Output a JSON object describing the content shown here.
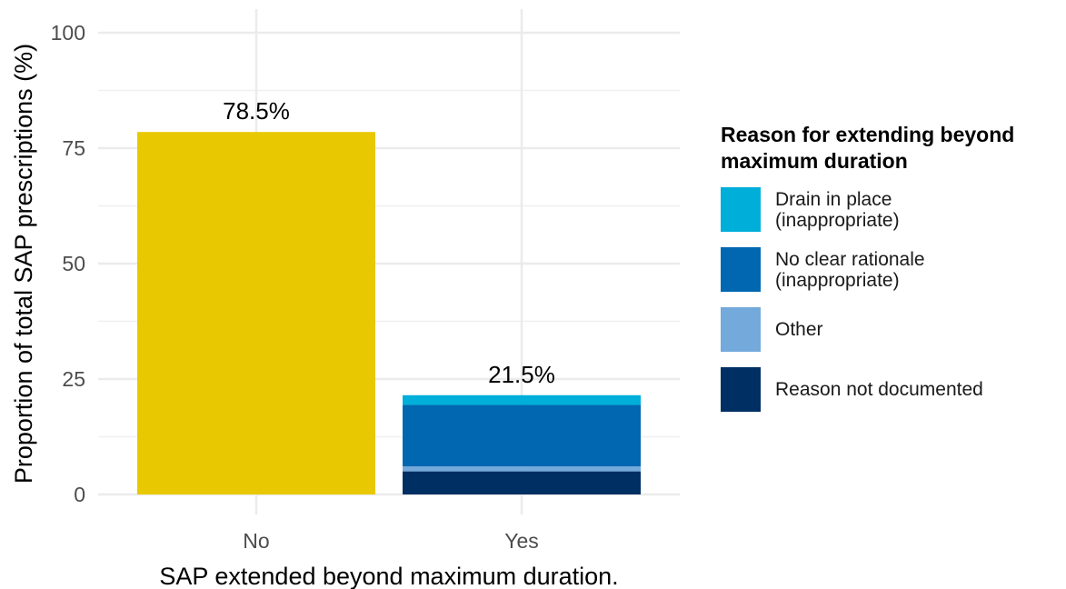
{
  "chart_data": {
    "type": "bar",
    "stacked": true,
    "categories": [
      "No",
      "Yes"
    ],
    "xlabel": "SAP extended beyond maximum duration.",
    "ylabel": "Proportion of total SAP prescriptions (%)",
    "ylim": [
      0,
      100
    ],
    "yticks": [
      0,
      25,
      50,
      75,
      100
    ],
    "grid": true,
    "legend_position": "right",
    "bars": [
      {
        "category": "No",
        "total_label": "78.5%",
        "segments": [
          {
            "series": "",
            "value": 78.5,
            "color": "#E8C800"
          }
        ]
      },
      {
        "category": "Yes",
        "total_label": "21.5%",
        "segments": [
          {
            "series": "Reason not documented",
            "value": 5.0,
            "color": "#002F63"
          },
          {
            "series": "Other",
            "value": 1.1,
            "color": "#74A9DB"
          },
          {
            "series": "No clear rationale\n(inappropriate)",
            "value": 13.3,
            "color": "#0067B0"
          },
          {
            "series": "Drain in place\n(inappropriate)",
            "value": 2.1,
            "color": "#00AEDA"
          }
        ]
      }
    ]
  },
  "legend": {
    "title": "Reason for extending beyond\nmaximum duration",
    "items": [
      {
        "label": "Drain in place\n(inappropriate)",
        "color": "#00AEDA"
      },
      {
        "label": "No clear rationale\n(inappropriate)",
        "color": "#0067B0"
      },
      {
        "label": "Other",
        "color": "#74A9DB"
      },
      {
        "label": "Reason not documented",
        "color": "#002F63"
      }
    ]
  }
}
